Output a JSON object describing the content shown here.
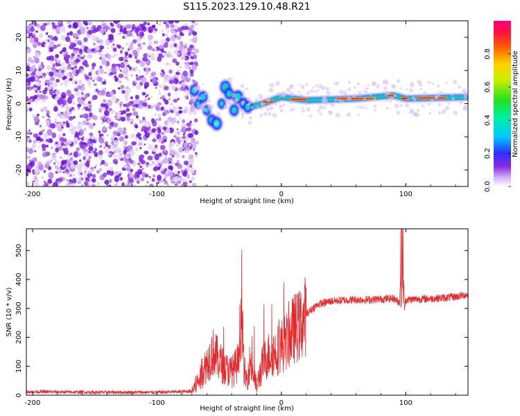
{
  "title": "S115.2023.129.10.48.R21",
  "chart_data": [
    {
      "type": "heatmap",
      "xlabel": "Height of straight line (km)",
      "ylabel": "Frequency (Hz)",
      "xlim": [
        -205,
        150
      ],
      "ylim": [
        -25,
        25
      ],
      "xticks": [
        -200,
        -100,
        0,
        100
      ],
      "yticks": [
        -20,
        -10,
        0,
        10,
        20
      ],
      "colorbar": {
        "label": "Normalized spectral amplitude",
        "range": [
          0,
          1
        ],
        "ticks": [
          "0.0",
          "0.2",
          "0.4",
          "0.6",
          "0.8"
        ],
        "colormap": "rainbow (white-violet-blue-cyan-green-yellow-red-magenta)"
      },
      "features": {
        "noise_region_x": [
          -205,
          -72
        ],
        "signal_ridge": [
          {
            "x": -70,
            "y": 3
          },
          {
            "x": -60,
            "y": 1
          },
          {
            "x": -52,
            "y": -6
          },
          {
            "x": -45,
            "y": 4
          },
          {
            "x": -35,
            "y": 2
          },
          {
            "x": -25,
            "y": -1
          },
          {
            "x": -15,
            "y": 0
          },
          {
            "x": 0,
            "y": 2
          },
          {
            "x": 20,
            "y": 1
          },
          {
            "x": 60,
            "y": 1.5
          },
          {
            "x": 90,
            "y": 2.5
          },
          {
            "x": 100,
            "y": 1.5
          },
          {
            "x": 150,
            "y": 2
          }
        ]
      }
    },
    {
      "type": "line",
      "xlabel": "Height of straight line (km)",
      "ylabel": "SNR (10 * v/v)",
      "xlim": [
        -205,
        150
      ],
      "ylim": [
        0,
        575
      ],
      "xticks": [
        -200,
        -100,
        0,
        100
      ],
      "yticks": [
        0,
        100,
        200,
        300,
        400,
        500
      ],
      "color": "#e8282b",
      "series": [
        {
          "x": [
            -205,
            -150,
            -100,
            -80,
            -72,
            -65,
            -60,
            -55,
            -50,
            -45,
            -40,
            -35,
            -32,
            -30,
            -28,
            -25,
            -20,
            -15,
            -10,
            -5,
            0,
            5,
            10,
            15,
            20,
            25,
            30,
            40,
            50,
            60,
            70,
            80,
            90,
            95,
            97,
            99,
            100,
            110,
            120,
            130,
            140,
            150
          ],
          "y": [
            12,
            10,
            10,
            12,
            14,
            60,
            110,
            150,
            120,
            90,
            80,
            110,
            300,
            90,
            50,
            120,
            30,
            110,
            140,
            150,
            170,
            190,
            230,
            240,
            280,
            300,
            315,
            325,
            328,
            330,
            330,
            332,
            335,
            320,
            550,
            300,
            330,
            332,
            334,
            336,
            340,
            348
          ]
        }
      ]
    }
  ]
}
